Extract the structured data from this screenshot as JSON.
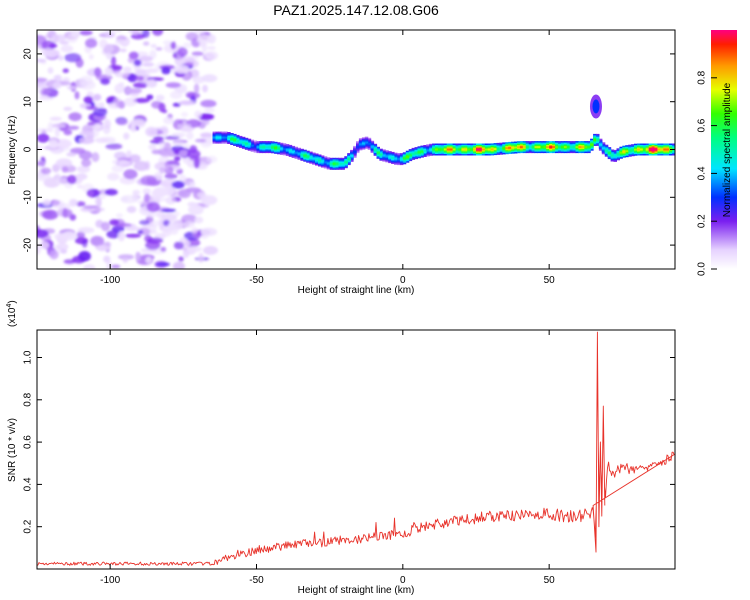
{
  "title": "PAZ1.2025.147.12.08.G06",
  "chart_data": [
    {
      "type": "heatmap",
      "name": "spectrogram",
      "xlabel": "Height of straight line (km)",
      "ylabel": "Frequency (Hz)",
      "xlim": [
        -125,
        93
      ],
      "ylim": [
        -25,
        25
      ],
      "xticks": [
        -100,
        -50,
        0,
        50
      ],
      "yticks": [
        -20,
        -10,
        0,
        10,
        20
      ],
      "noise_region_x": [
        -125,
        -65
      ],
      "signal_ridge": {
        "x": [
          -65,
          -60,
          -55,
          -50,
          -45,
          -40,
          -35,
          -30,
          -25,
          -20,
          -17,
          -15,
          -12,
          -8,
          -5,
          -2,
          0,
          3,
          6,
          10,
          15,
          20,
          30,
          40,
          50,
          60,
          64,
          66,
          68,
          72,
          75,
          80,
          85,
          93
        ],
        "freq": [
          2.5,
          2.5,
          1.5,
          0.5,
          0.5,
          0,
          -1,
          -2,
          -3,
          -3,
          -1,
          1,
          1.5,
          -1,
          -1.5,
          -2,
          -2,
          -1,
          -0.5,
          0,
          0,
          0,
          0,
          0.5,
          0.5,
          0.5,
          0.5,
          2.5,
          0.5,
          -1.5,
          -0.5,
          0,
          0,
          0
        ],
        "amplitude": [
          0.45,
          0.55,
          0.5,
          0.5,
          0.55,
          0.5,
          0.5,
          0.5,
          0.6,
          0.5,
          0.45,
          0.45,
          0.4,
          0.5,
          0.5,
          0.55,
          0.6,
          0.55,
          0.6,
          0.65,
          0.75,
          0.9,
          0.85,
          0.8,
          0.8,
          0.75,
          0.7,
          0.6,
          0.7,
          0.5,
          0.65,
          0.9,
          0.95,
          0.95
        ]
      },
      "secondary_feature": {
        "x": 66,
        "freq": 9,
        "amplitude": 0.3
      },
      "colorbar": {
        "label": "Normalized spectral amplitude",
        "range": [
          0,
          1
        ],
        "ticks": [
          "0.0",
          "0.2",
          "0.4",
          "0.6",
          "0.8"
        ],
        "tick_values": [
          0,
          0.2,
          0.4,
          0.6,
          0.8
        ]
      }
    },
    {
      "type": "line",
      "name": "snr",
      "xlabel": "Height of straight line (km)",
      "ylabel": "SNR (10 * v/v)",
      "y_multiplier_label": "(x10",
      "y_multiplier_exp": "4",
      "y_multiplier_close": ")",
      "xlim": [
        -125,
        93
      ],
      "ylim": [
        0,
        1.13
      ],
      "xticks": [
        -100,
        -50,
        0,
        50
      ],
      "yticks": [
        0.2,
        0.4,
        0.6,
        0.8,
        1.0
      ],
      "ytick_labels": [
        "0.2",
        "0.4",
        "0.6",
        "0.8",
        "1.0"
      ],
      "color": "#e8322a",
      "series": [
        {
          "name": "SNR",
          "x": [
            -125,
            -110,
            -95,
            -80,
            -70,
            -65,
            -60,
            -55,
            -50,
            -45,
            -40,
            -35,
            -30,
            -25,
            -20,
            -15,
            -10,
            -5,
            0,
            5,
            10,
            15,
            20,
            25,
            30,
            35,
            40,
            45,
            50,
            55,
            60,
            64,
            65,
            66,
            66.5,
            67,
            67.5,
            68,
            68.5,
            69,
            70,
            72,
            75,
            80,
            85,
            90,
            93
          ],
          "values": [
            0.025,
            0.025,
            0.025,
            0.025,
            0.025,
            0.025,
            0.05,
            0.07,
            0.09,
            0.1,
            0.11,
            0.12,
            0.12,
            0.13,
            0.14,
            0.14,
            0.15,
            0.16,
            0.17,
            0.19,
            0.21,
            0.22,
            0.23,
            0.24,
            0.25,
            0.25,
            0.25,
            0.26,
            0.26,
            0.25,
            0.25,
            0.26,
            0.3,
            0.08,
            1.12,
            0.2,
            0.6,
            0.25,
            0.77,
            0.3,
            0.5,
            0.45,
            0.48,
            0.47,
            0.5,
            0.52,
            0.54
          ]
        }
      ]
    }
  ]
}
